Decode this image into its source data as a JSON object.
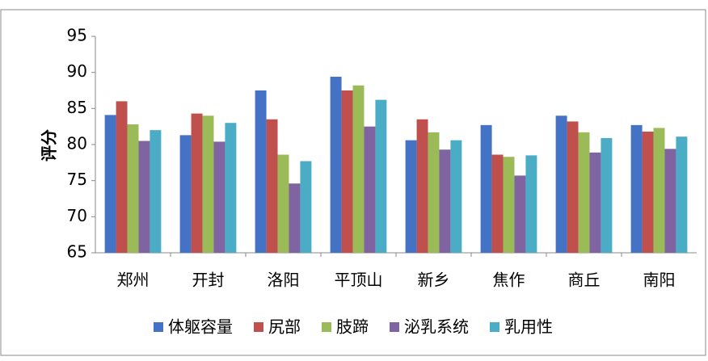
{
  "chart_data": {
    "type": "bar",
    "y_label": "评分",
    "categories": [
      "郑州",
      "开封",
      "洛阳",
      "平顶山",
      "新乡",
      "焦作",
      "商丘",
      "南阳"
    ],
    "series": [
      {
        "name": "体躯容量",
        "color": "#4472c4",
        "values": [
          84.1,
          81.3,
          87.5,
          89.4,
          80.6,
          82.7,
          84.0,
          82.7
        ]
      },
      {
        "name": "尻部",
        "color": "#c0504d",
        "values": [
          86.0,
          84.3,
          83.5,
          87.5,
          83.5,
          78.6,
          83.2,
          81.8
        ]
      },
      {
        "name": "肢蹄",
        "color": "#9bbb59",
        "values": [
          82.8,
          84.0,
          78.6,
          88.2,
          81.7,
          78.3,
          81.7,
          82.3
        ]
      },
      {
        "name": "泌乳系统",
        "color": "#8064a2",
        "values": [
          80.5,
          80.4,
          74.6,
          82.5,
          79.3,
          75.7,
          78.9,
          79.4
        ]
      },
      {
        "name": "乳用性",
        "color": "#4bacc6",
        "values": [
          82.0,
          83.0,
          77.7,
          86.2,
          80.6,
          78.5,
          80.9,
          81.1
        ]
      }
    ],
    "ylim": [
      65,
      95
    ],
    "yticks": [
      65,
      70,
      75,
      80,
      85,
      90,
      95
    ],
    "grid": false,
    "legend": "bottom"
  }
}
